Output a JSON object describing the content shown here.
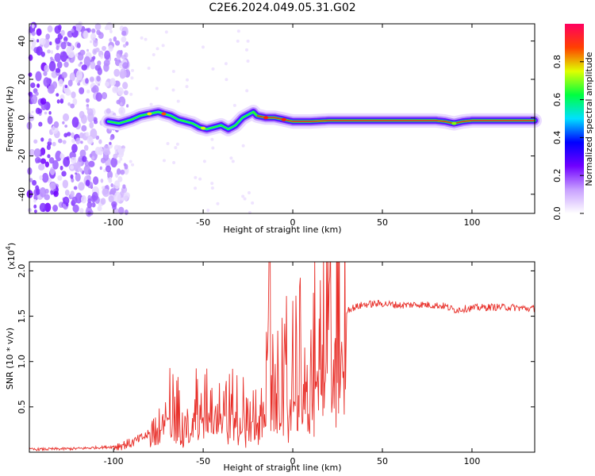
{
  "title": "C2E6.2024.049.05.31.G02",
  "chart_data": [
    {
      "type": "heatmap",
      "xlabel": "Height of straight line (km)",
      "ylabel": "Frequency (Hz)",
      "xlim": [
        -147,
        135
      ],
      "ylim": [
        -50,
        49
      ],
      "xticks": [
        -100,
        -50,
        0,
        50,
        100
      ],
      "yticks": [
        -40,
        -20,
        0,
        20,
        40
      ],
      "colorbar": {
        "label": "Normalized spectral amplitude",
        "range": [
          0.0,
          1.0
        ],
        "ticks": [
          "0.0",
          "0.2",
          "0.4",
          "0.6",
          "0.8"
        ],
        "colors": [
          "#ffffff",
          "#c8a0ff",
          "#7000ff",
          "#0000ff",
          "#00e0ff",
          "#00ff40",
          "#e0ff00",
          "#ff4000",
          "#ff0060"
        ]
      },
      "ridge": {
        "x": [
          -103,
          -97,
          -90,
          -85,
          -80,
          -75,
          -72,
          -68,
          -64,
          -60,
          -56,
          -52,
          -48,
          -44,
          -40,
          -36,
          -32,
          -28,
          -24,
          -22,
          -20,
          -15,
          -10,
          -5,
          0,
          10,
          20,
          40,
          60,
          80,
          85,
          90,
          95,
          100,
          135
        ],
        "y": [
          -2,
          -3,
          -1,
          1,
          2,
          3,
          2,
          1,
          -1,
          -2,
          -3,
          -5,
          -6,
          -5,
          -4,
          -6,
          -4,
          0,
          2,
          3,
          1,
          0,
          0,
          -1,
          -2,
          -2,
          -1.5,
          -1.5,
          -1.5,
          -1.5,
          -2,
          -3,
          -2,
          -1.5,
          -1.5
        ]
      }
    },
    {
      "type": "line",
      "xlabel": "Height of straight line (km)",
      "ylabel": "SNR (10 * v/v)",
      "yscale_label": "(x10",
      "yscale_exp": "4",
      "yscale_close": ")",
      "xlim": [
        -147,
        135
      ],
      "ylim": [
        0,
        2.1
      ],
      "xticks": [
        -100,
        -50,
        0,
        50,
        100
      ],
      "yticks": [
        "0.5",
        "1.0",
        "1.5",
        "2.0"
      ],
      "color": "#e8302a",
      "series": [
        {
          "x": [
            -147,
            -120,
            -100,
            -90,
            -80,
            -75,
            -72,
            -70,
            -65,
            -60,
            -55,
            -50,
            -45,
            -42,
            -38,
            -35,
            -30,
            -25,
            -20,
            -15,
            -13,
            -12,
            -10,
            -5,
            0,
            5,
            10,
            15,
            20,
            25,
            30,
            40,
            50,
            60,
            70,
            80,
            85,
            90,
            95,
            100,
            110,
            120,
            135
          ],
          "y": [
            0.03,
            0.04,
            0.06,
            0.1,
            0.2,
            0.3,
            0.4,
            0.55,
            0.45,
            0.5,
            0.55,
            0.5,
            0.6,
            0.7,
            0.5,
            0.55,
            0.5,
            0.45,
            0.5,
            0.65,
            1.1,
            0.6,
            0.85,
            0.9,
            1.0,
            1.05,
            1.1,
            1.2,
            1.35,
            1.5,
            1.57,
            1.63,
            1.64,
            1.62,
            1.63,
            1.62,
            1.61,
            1.57,
            1.58,
            1.59,
            1.6,
            1.6,
            1.58
          ]
        }
      ]
    }
  ]
}
